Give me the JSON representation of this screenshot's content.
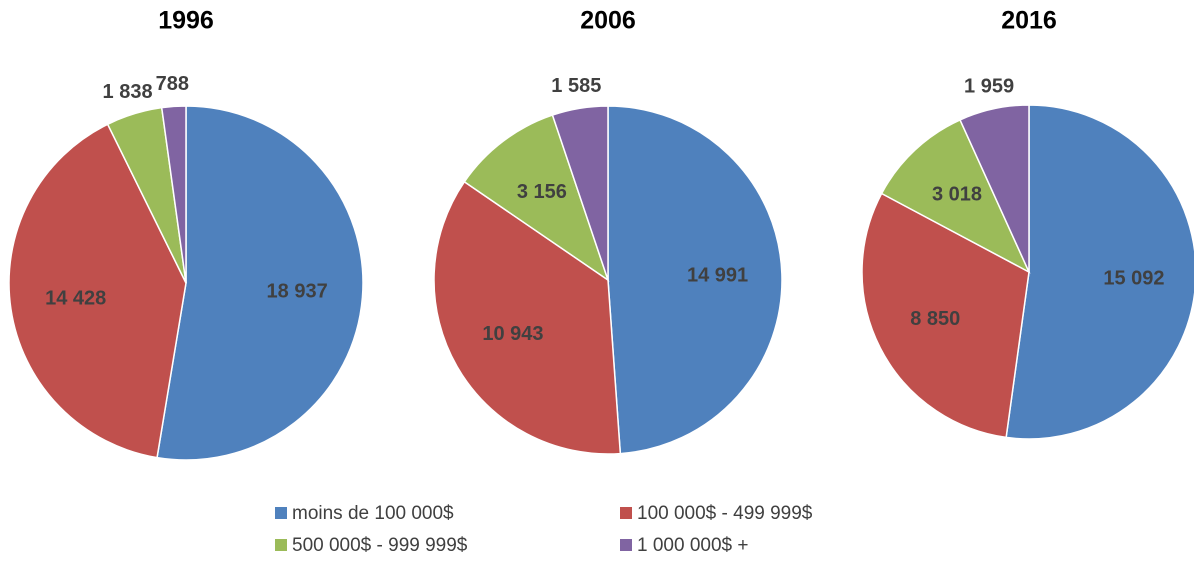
{
  "chart_data": [
    {
      "type": "pie",
      "title": "1996",
      "categories": [
        "moins de 100 000$",
        "100 000$ - 499 999$",
        "500 000$ - 999 999$",
        "1 000 000$ +"
      ],
      "values": [
        18937,
        14428,
        1838,
        788
      ],
      "value_labels": [
        "18 937",
        "14 428",
        "1 838",
        "788"
      ],
      "colors": [
        "#4f81bd",
        "#c0504d",
        "#9bbb59",
        "#8064a2"
      ]
    },
    {
      "type": "pie",
      "title": "2006",
      "categories": [
        "moins de 100 000$",
        "100 000$ - 499 999$",
        "500 000$ - 999 999$",
        "1 000 000$ +"
      ],
      "values": [
        14991,
        10943,
        3156,
        1585
      ],
      "value_labels": [
        "14 991",
        "10 943",
        "3 156",
        "1 585"
      ],
      "colors": [
        "#4f81bd",
        "#c0504d",
        "#9bbb59",
        "#8064a2"
      ]
    },
    {
      "type": "pie",
      "title": "2016",
      "categories": [
        "moins de 100 000$",
        "100 000$ - 499 999$",
        "500 000$ - 999 999$",
        "1 000 000$ +"
      ],
      "values": [
        15092,
        8850,
        3018,
        1959
      ],
      "value_labels": [
        "15 092",
        "8 850",
        "3 018",
        "1 959"
      ],
      "colors": [
        "#4f81bd",
        "#c0504d",
        "#9bbb59",
        "#8064a2"
      ]
    }
  ]
}
